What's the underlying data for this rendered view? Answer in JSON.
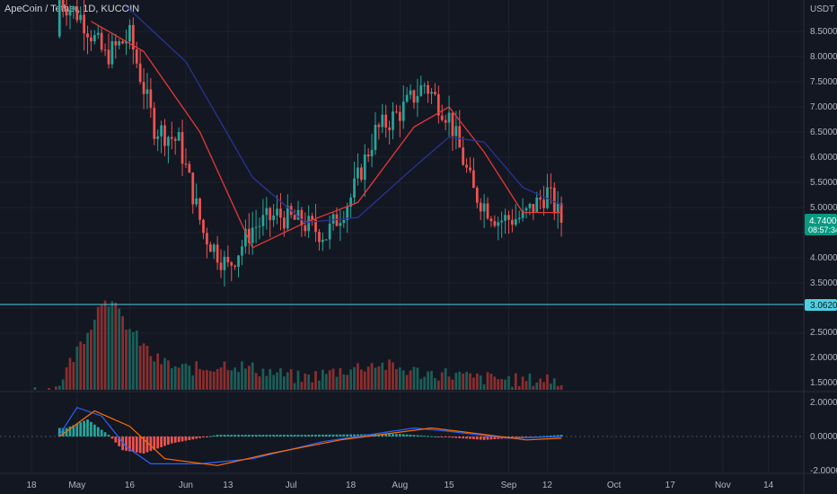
{
  "header": {
    "title": "ApeCoin / Tether, 1D, KUCOIN"
  },
  "colors": {
    "background": "#131722",
    "grid": "#1e222d",
    "axis_text": "#b2b5be",
    "up": "#26a69a",
    "down": "#ef5350",
    "ma_fast": "#e53935",
    "ma_slow": "#283593",
    "macd": "#2962ff",
    "signal": "#ff6d00",
    "support": "#4dd0e1",
    "last_price": "#089981"
  },
  "price_axis": {
    "currency": "USDT",
    "ticks": [
      "8.5000",
      "8.0000",
      "7.5000",
      "7.0000",
      "6.5000",
      "6.0000",
      "5.5000",
      "5.0000",
      "4.0000",
      "3.5000",
      "2.5000",
      "2.0000",
      "1.5000"
    ]
  },
  "last_price": {
    "value": "4.7400",
    "countdown": "08:57:34"
  },
  "support": {
    "value": "3.0620"
  },
  "macd_axis": {
    "ticks": [
      "2.0000",
      "0.0000",
      "-2.0000"
    ]
  },
  "time_axis": {
    "ticks": [
      "18",
      "May",
      "16",
      "Jun",
      "13",
      "Jul",
      "18",
      "Aug",
      "15",
      "Sep",
      "12",
      "Oct",
      "17",
      "Nov",
      "14"
    ]
  },
  "chart_data": {
    "type": "candlestick",
    "title": "ApeCoin / Tether, 1D, KUCOIN",
    "x_range": [
      "2022-04-18",
      "2022-11-21"
    ],
    "ylim": [
      3.0,
      8.9
    ],
    "log_scale": false,
    "grid": true,
    "last_price": 4.74,
    "support_level": 3.062,
    "weekly_close": [
      [
        "2022-04-25",
        9.2
      ],
      [
        "2022-05-02",
        8.8
      ],
      [
        "2022-05-09",
        8.0
      ],
      [
        "2022-05-16",
        8.4
      ],
      [
        "2022-05-23",
        6.6
      ],
      [
        "2022-05-30",
        6.3
      ],
      [
        "2022-06-06",
        4.5
      ],
      [
        "2022-06-13",
        3.8
      ],
      [
        "2022-06-20",
        4.6
      ],
      [
        "2022-06-27",
        4.85
      ],
      [
        "2022-07-04",
        4.7
      ],
      [
        "2022-07-11",
        4.45
      ],
      [
        "2022-07-18",
        5.2
      ],
      [
        "2022-07-25",
        6.5
      ],
      [
        "2022-08-01",
        6.9
      ],
      [
        "2022-08-08",
        7.45
      ],
      [
        "2022-08-15",
        6.8
      ],
      [
        "2022-08-22",
        5.3
      ],
      [
        "2022-08-29",
        4.75
      ],
      [
        "2022-09-05",
        4.8
      ],
      [
        "2022-09-12",
        5.3
      ],
      [
        "2022-09-16",
        4.74
      ]
    ],
    "series": [
      {
        "name": "",
        "type": "moving_average",
        "points": [
          [
            "2022-05-05",
            8.7
          ],
          [
            "2022-05-20",
            8.1
          ],
          [
            "2022-06-05",
            6.5
          ],
          [
            "2022-06-20",
            4.2
          ],
          [
            "2022-07-05",
            4.7
          ],
          [
            "2022-07-20",
            5.1
          ],
          [
            "2022-08-05",
            6.6
          ],
          [
            "2022-08-15",
            7.0
          ],
          [
            "2022-08-25",
            6.1
          ],
          [
            "2022-09-05",
            4.9
          ],
          [
            "2022-09-16",
            4.9
          ]
        ]
      },
      {
        "name": "",
        "type": "moving_average",
        "points": [
          [
            "2022-05-15",
            9.0
          ],
          [
            "2022-06-01",
            7.9
          ],
          [
            "2022-06-20",
            5.6
          ],
          [
            "2022-07-05",
            4.7
          ],
          [
            "2022-07-20",
            4.8
          ],
          [
            "2022-08-05",
            5.8
          ],
          [
            "2022-08-15",
            6.4
          ],
          [
            "2022-08-25",
            6.3
          ],
          [
            "2022-09-05",
            5.4
          ],
          [
            "2022-09-16",
            5.05
          ]
        ]
      }
    ],
    "volume_profile": [
      [
        "2022-04-25",
        1.4
      ],
      [
        "2022-05-02",
        2.3
      ],
      [
        "2022-05-09",
        3.3
      ],
      [
        "2022-05-16",
        2.6
      ],
      [
        "2022-05-23",
        2.0
      ],
      [
        "2022-05-30",
        1.8
      ],
      [
        "2022-06-06",
        1.8
      ],
      [
        "2022-06-13",
        1.9
      ],
      [
        "2022-06-20",
        1.8
      ],
      [
        "2022-06-27",
        1.7
      ],
      [
        "2022-07-04",
        1.6
      ],
      [
        "2022-07-11",
        1.7
      ],
      [
        "2022-07-18",
        1.8
      ],
      [
        "2022-07-25",
        1.9
      ],
      [
        "2022-08-01",
        1.8
      ],
      [
        "2022-08-08",
        1.7
      ],
      [
        "2022-08-15",
        1.7
      ],
      [
        "2022-08-22",
        1.6
      ],
      [
        "2022-08-29",
        1.6
      ],
      [
        "2022-09-05",
        1.55
      ],
      [
        "2022-09-12",
        1.6
      ],
      [
        "2022-09-16",
        1.5
      ]
    ],
    "macd": {
      "ylim": [
        -2.2,
        2.2
      ],
      "macd_line": [
        [
          "2022-04-26",
          0.1
        ],
        [
          "2022-05-01",
          1.7
        ],
        [
          "2022-05-08",
          1.2
        ],
        [
          "2022-05-15",
          -0.6
        ],
        [
          "2022-05-22",
          -1.6
        ],
        [
          "2022-06-05",
          -1.6
        ],
        [
          "2022-06-20",
          -1.3
        ],
        [
          "2022-07-10",
          -0.3
        ],
        [
          "2022-08-05",
          0.5
        ],
        [
          "2022-08-15",
          0.3
        ],
        [
          "2022-09-01",
          -0.1
        ],
        [
          "2022-09-16",
          0.0
        ]
      ],
      "signal_line": [
        [
          "2022-04-26",
          0.0
        ],
        [
          "2022-05-06",
          1.5
        ],
        [
          "2022-05-16",
          0.6
        ],
        [
          "2022-05-26",
          -1.3
        ],
        [
          "2022-06-10",
          -1.7
        ],
        [
          "2022-06-25",
          -1.0
        ],
        [
          "2022-07-15",
          -0.2
        ],
        [
          "2022-08-10",
          0.5
        ],
        [
          "2022-08-22",
          0.2
        ],
        [
          "2022-09-06",
          -0.2
        ],
        [
          "2022-09-16",
          -0.1
        ]
      ],
      "histogram": [
        [
          "2022-04-28",
          0.5
        ],
        [
          "2022-05-04",
          1.0
        ],
        [
          "2022-05-10",
          0.1
        ],
        [
          "2022-05-14",
          -0.8
        ],
        [
          "2022-05-20",
          -1.0
        ],
        [
          "2022-05-28",
          -0.4
        ],
        [
          "2022-06-10",
          0.1
        ],
        [
          "2022-07-05",
          0.1
        ],
        [
          "2022-08-01",
          0.15
        ],
        [
          "2022-08-25",
          -0.2
        ],
        [
          "2022-09-16",
          0.1
        ]
      ]
    }
  }
}
